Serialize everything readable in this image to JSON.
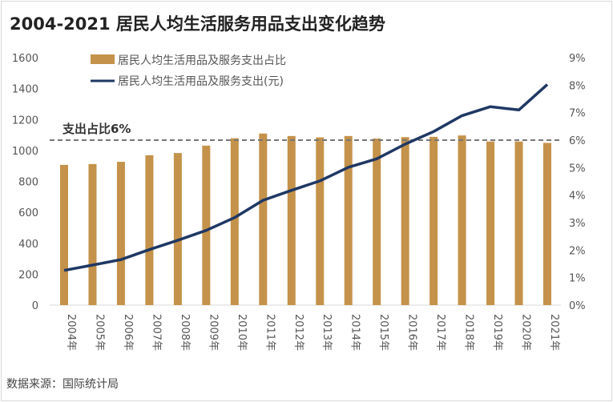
{
  "chart_data": {
    "type": "bar+line",
    "title": "2004-2021 居民人均生活服务用品支出变化趋势",
    "categories": [
      "2004年",
      "2005年",
      "2006年",
      "2007年",
      "2008年",
      "2009年",
      "2010年",
      "2011年",
      "2012年",
      "2013年",
      "2014年",
      "2015年",
      "2016年",
      "2017年",
      "2018年",
      "2019年",
      "2020年",
      "2021年"
    ],
    "series": [
      {
        "name": "居民人均生活用品及服务支出占比",
        "type": "bar",
        "axis": "right",
        "color": "#c4924a",
        "values": [
          5.1,
          5.13,
          5.21,
          5.45,
          5.53,
          5.8,
          6.07,
          6.24,
          6.15,
          6.1,
          6.15,
          6.06,
          6.11,
          6.12,
          6.17,
          5.95,
          5.95,
          5.9
        ]
      },
      {
        "name": "居民人均生活用品及服务支出(元)",
        "type": "line",
        "axis": "left",
        "color": "#1f3864",
        "values": [
          224,
          259,
          294,
          359,
          419,
          483,
          566,
          678,
          742,
          803,
          891,
          946,
          1041,
          1122,
          1225,
          1283,
          1262,
          1426
        ]
      }
    ],
    "left_axis": {
      "min": 0,
      "max": 1600,
      "ticks": [
        "0",
        "200",
        "400",
        "600",
        "800",
        "1000",
        "1200",
        "1400",
        "1600"
      ]
    },
    "right_axis": {
      "min": 0,
      "max": 9,
      "ticks": [
        "0%",
        "1%",
        "2%",
        "3%",
        "4%",
        "5%",
        "6%",
        "7%",
        "8%",
        "9%"
      ]
    },
    "reference_line": {
      "value": 6,
      "axis": "right",
      "label": "支出占比6%",
      "style": "dashed",
      "color": "#777777"
    },
    "legend_position": "top-left",
    "grid": false
  },
  "source": "数据来源：国际统计局"
}
